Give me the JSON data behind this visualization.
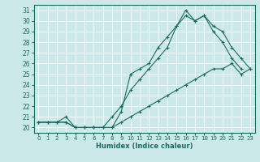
{
  "xlabel": "Humidex (Indice chaleur)",
  "bg_color": "#cce9e9",
  "line_color": "#1a6b60",
  "xlim": [
    -0.5,
    23.5
  ],
  "ylim": [
    19.5,
    31.5
  ],
  "xticks": [
    0,
    1,
    2,
    3,
    4,
    5,
    6,
    7,
    8,
    9,
    10,
    11,
    12,
    13,
    14,
    15,
    16,
    17,
    18,
    19,
    20,
    21,
    22,
    23
  ],
  "yticks": [
    20,
    21,
    22,
    23,
    24,
    25,
    26,
    27,
    28,
    29,
    30,
    31
  ],
  "series1_x": [
    0,
    1,
    2,
    3,
    4,
    5,
    6,
    7,
    8,
    9,
    10,
    11,
    12,
    13,
    14,
    15,
    16,
    17,
    18,
    19,
    20,
    21,
    22,
    23
  ],
  "series1_y": [
    20.5,
    20.5,
    20.5,
    20.5,
    20.0,
    20.0,
    20.0,
    20.0,
    20.0,
    20.5,
    21.0,
    21.5,
    22.0,
    22.5,
    23.0,
    23.5,
    24.0,
    24.5,
    25.0,
    25.5,
    25.5,
    26.0,
    25.0,
    25.5
  ],
  "series2_x": [
    0,
    1,
    2,
    3,
    4,
    5,
    6,
    7,
    8,
    9,
    10,
    11,
    12,
    13,
    14,
    15,
    16,
    17,
    18,
    19,
    20,
    21,
    22
  ],
  "series2_y": [
    20.5,
    20.5,
    20.5,
    20.5,
    20.0,
    20.0,
    20.0,
    20.0,
    20.0,
    21.5,
    25.0,
    25.5,
    26.0,
    27.5,
    28.5,
    29.5,
    31.0,
    30.0,
    30.5,
    29.0,
    28.0,
    26.5,
    25.5
  ],
  "series3_x": [
    0,
    1,
    2,
    3,
    4,
    5,
    6,
    7,
    8,
    9,
    10,
    11,
    12,
    13,
    14,
    15,
    16,
    17,
    18,
    19,
    20,
    21,
    22,
    23
  ],
  "series3_y": [
    20.5,
    20.5,
    20.5,
    21.0,
    20.0,
    20.0,
    20.0,
    20.0,
    21.0,
    22.0,
    23.5,
    24.5,
    25.5,
    26.5,
    27.5,
    29.5,
    30.5,
    30.0,
    30.5,
    29.5,
    29.0,
    27.5,
    26.5,
    25.5
  ]
}
